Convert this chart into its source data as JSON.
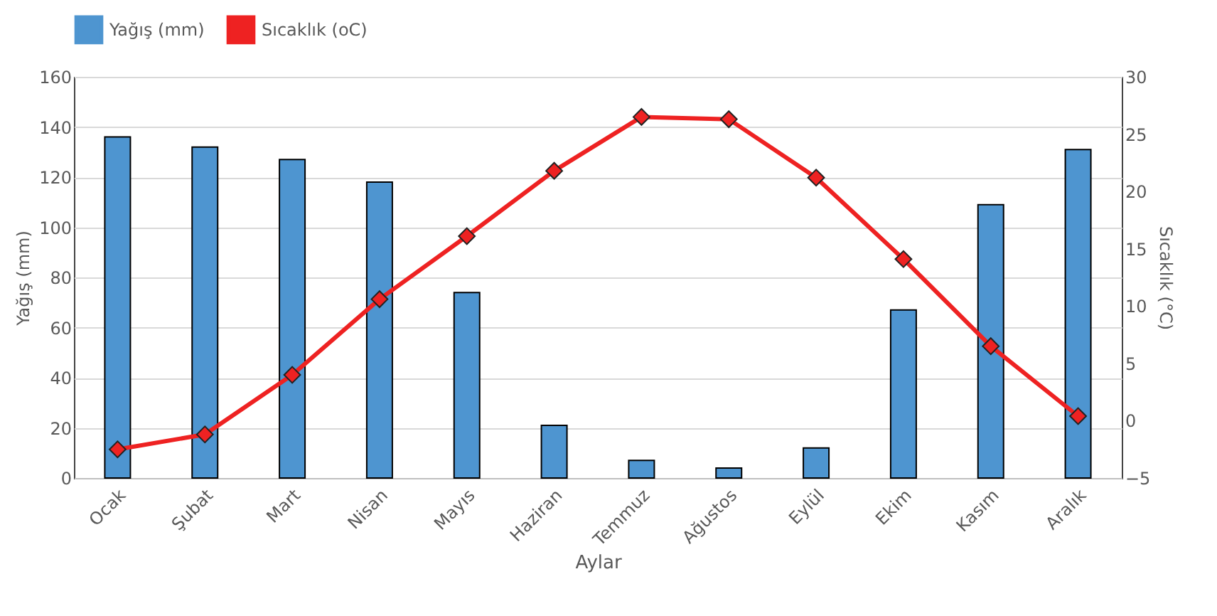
{
  "chart_data": {
    "type": "bar",
    "xlabel": "Aylar",
    "ylabel": "Yağış (mm)",
    "y2label": "Sıcaklık (°C)",
    "categories": [
      "Ocak",
      "Şubat",
      "Mart",
      "Nisan",
      "Mayıs",
      "Haziran",
      "Temmuz",
      "Ağustos",
      "Eylül",
      "Ekim",
      "Kasım",
      "Aralık"
    ],
    "series": [
      {
        "name": "Yağış (mm)",
        "color": "#4e95d0",
        "values": [
          136,
          132,
          127,
          118,
          74,
          21,
          7,
          4,
          12,
          67,
          109,
          131
        ]
      },
      {
        "name": "Sıcaklık (oC)",
        "type": "line",
        "axis": "y2",
        "color": "#ee2222",
        "marker": "diamond",
        "values": [
          -2.5,
          -1.2,
          4.0,
          10.6,
          16.1,
          21.8,
          26.5,
          26.3,
          21.2,
          14.1,
          6.5,
          0.4
        ]
      }
    ],
    "ylim": [
      0,
      160
    ],
    "yticks": [
      0,
      20,
      40,
      60,
      80,
      100,
      120,
      140,
      160
    ],
    "y2lim": [
      -5,
      30
    ],
    "y2ticks": [
      -5,
      0,
      5,
      10,
      15,
      20,
      25,
      30
    ],
    "grid": "y",
    "legend": "top"
  }
}
